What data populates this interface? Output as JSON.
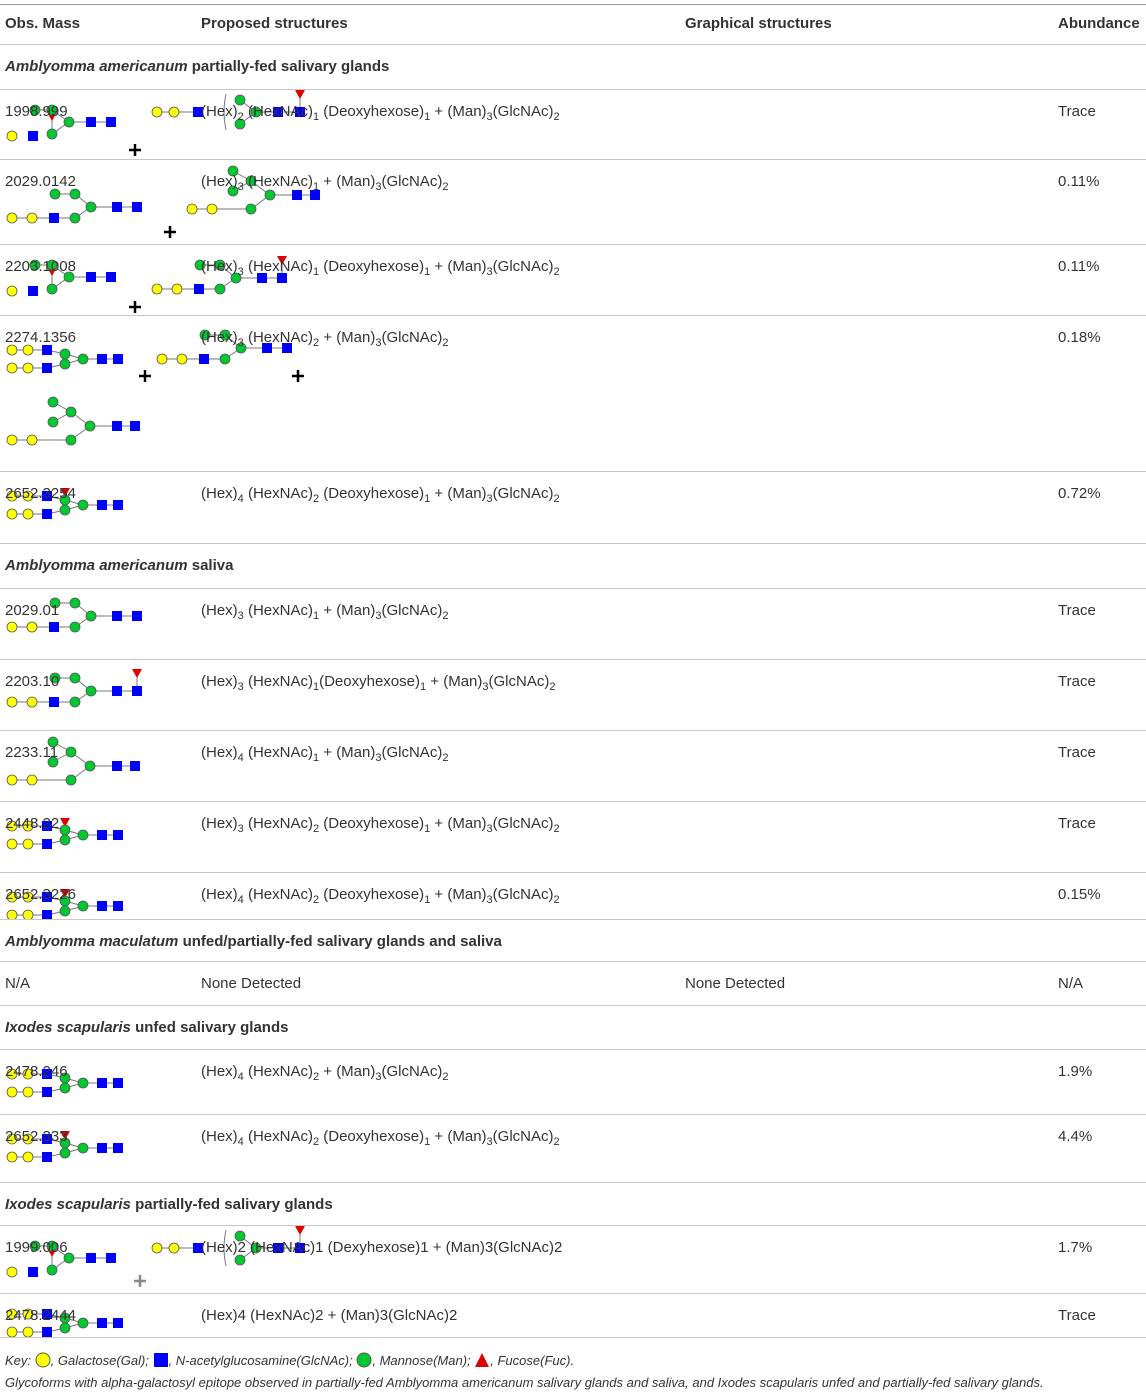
{
  "header": [
    "Obs. Mass",
    "Proposed structures",
    "Graphical structures",
    "Abundance"
  ],
  "sections": [
    {
      "species": "Amblyomma americanum",
      "context": "partially-fed salivary glands",
      "rows": [
        {
          "mass": "1998.999",
          "structure": [
            {
              "t": "(Hex)",
              "sub": "2"
            },
            {
              "t": " (HexNAc)",
              "sub": "1"
            },
            {
              "t": " (Deoxyhexose)",
              "sub": "1"
            },
            {
              "t": " + (Man)",
              "sub": "3"
            },
            {
              "t": "(GlcNAc)",
              "sub": "2"
            }
          ],
          "abundance": "Trace"
        },
        {
          "mass": "2029.0142",
          "structure": [
            {
              "t": "(Hex)",
              "sub": "3"
            },
            {
              "t": " (HexNAc)",
              "sub": "1"
            },
            {
              "t": " + (Man)",
              "sub": "3"
            },
            {
              "t": "(GlcNAc)",
              "sub": "2"
            }
          ],
          "abundance": "0.11%"
        },
        {
          "mass": "2203.1008",
          "structure": [
            {
              "t": "(Hex)",
              "sub": "3"
            },
            {
              "t": " (HexNAc)",
              "sub": "1"
            },
            {
              "t": " (Deoxyhexose)",
              "sub": "1"
            },
            {
              "t": " + (Man)",
              "sub": "3"
            },
            {
              "t": "(GlcNAc)",
              "sub": "2"
            }
          ],
          "abundance": "0.11%"
        },
        {
          "mass": "2274.1356",
          "structure": [
            {
              "t": "(Hex)",
              "sub": "3"
            },
            {
              "t": " (HexNAc)",
              "sub": "2"
            },
            {
              "t": " + (Man)",
              "sub": "3"
            },
            {
              "t": "(GlcNAc)",
              "sub": "2"
            }
          ],
          "abundance": "0.18%"
        },
        {
          "mass": "2652.3254",
          "structure": [
            {
              "t": "(Hex)",
              "sub": "4"
            },
            {
              "t": " (HexNAc)",
              "sub": "2"
            },
            {
              "t": " (Deoxyhexose)",
              "sub": "1"
            },
            {
              "t": " + (Man)",
              "sub": "3"
            },
            {
              "t": "(GlcNAc)",
              "sub": "2"
            }
          ],
          "abundance": "0.72%"
        }
      ]
    },
    {
      "species": "Amblyomma americanum",
      "context": "saliva",
      "rows": [
        {
          "mass": "2029.01",
          "structure": [
            {
              "t": "(Hex)",
              "sub": "3"
            },
            {
              "t": " (HexNAc)",
              "sub": "1"
            },
            {
              "t": " + (Man)",
              "sub": "3"
            },
            {
              "t": "(GlcNAc)",
              "sub": "2"
            }
          ],
          "abundance": "Trace"
        },
        {
          "mass": "2203.10",
          "structure": [
            {
              "t": "(Hex)",
              "sub": "3"
            },
            {
              "t": " (HexNAc)",
              "sub": "1"
            },
            {
              "t": "(Deoxyhexose)",
              "sub": "1"
            },
            {
              "t": " + (Man)",
              "sub": "3"
            },
            {
              "t": "(GlcNAc)",
              "sub": "2"
            }
          ],
          "abundance": "Trace"
        },
        {
          "mass": "2233.11",
          "structure": [
            {
              "t": "(Hex)",
              "sub": "4"
            },
            {
              "t": " (HexNAc)",
              "sub": "1"
            },
            {
              "t": " + (Man)",
              "sub": "3"
            },
            {
              "t": "(GlcNAc)",
              "sub": "2"
            }
          ],
          "abundance": "Trace"
        },
        {
          "mass": "2448.22",
          "structure": [
            {
              "t": "(Hex)",
              "sub": "3"
            },
            {
              "t": " (HexNAc)",
              "sub": "2"
            },
            {
              "t": " (Deoxyhexose)",
              "sub": "1"
            },
            {
              "t": " + (Man)",
              "sub": "3"
            },
            {
              "t": "(GlcNAc)",
              "sub": "2"
            }
          ],
          "abundance": "Trace"
        },
        {
          "mass": "2652.3226",
          "structure": [
            {
              "t": "(Hex)",
              "sub": "4"
            },
            {
              "t": " (HexNAc)",
              "sub": "2"
            },
            {
              "t": " (Deoxyhexose)",
              "sub": "1"
            },
            {
              "t": " + (Man)",
              "sub": "3"
            },
            {
              "t": "(GlcNAc)",
              "sub": "2"
            }
          ],
          "abundance": "0.15%"
        }
      ]
    },
    {
      "species": "Amblyomma maculatum",
      "context": "unfed/partially-fed salivary glands and saliva",
      "rows": [
        {
          "mass": "N/A",
          "structure": "None Detected",
          "graphic": "None Detected",
          "abundance": "N/A"
        }
      ]
    },
    {
      "species": "Ixodes scapularis",
      "context": "unfed salivary glands",
      "rows": [
        {
          "mass": "2478.246",
          "structure": [
            {
              "t": "(Hex)",
              "sub": "4"
            },
            {
              "t": " (HexNAc)",
              "sub": "2"
            },
            {
              "t": " + (Man)",
              "sub": "3"
            },
            {
              "t": "(GlcNAc)",
              "sub": "2"
            }
          ],
          "abundance": "1.9%"
        },
        {
          "mass": "2652.333",
          "structure": [
            {
              "t": "(Hex)",
              "sub": "4"
            },
            {
              "t": " (HexNAc)",
              "sub": "2"
            },
            {
              "t": " (Deoxyhexose)",
              "sub": "1"
            },
            {
              "t": " + (Man)",
              "sub": "3"
            },
            {
              "t": "(GlcNAc)",
              "sub": "2"
            }
          ],
          "abundance": "4.4%"
        }
      ]
    },
    {
      "species": "Ixodes scapularis",
      "context": "partially-fed salivary glands",
      "rows": [
        {
          "mass": "1999.006",
          "structure": "(Hex)2 (HexNAc)1 (Dexyhexose)1 + (Man)3(GlcNAc)2",
          "abundance": "1.7%"
        },
        {
          "mass": "2478.2444",
          "structure": "(Hex)4 (HexNAc)2 + (Man)3(GlcNAc)2",
          "abundance": "Trace"
        }
      ]
    }
  ],
  "key": {
    "label": "Key:",
    "items": [
      ", Galactose(Gal);",
      ", N-acetylglucosamine(GlcNAc);",
      ", Mannose(Man);",
      ", Fucose(Fuc)."
    ]
  },
  "caption": "Glycoforms with alpha-galactosyl epitope observed in partially-fed Amblyomma americanum salivary glands and saliva, and Ixodes scapularis unfed and partially-fed salivary glands."
}
